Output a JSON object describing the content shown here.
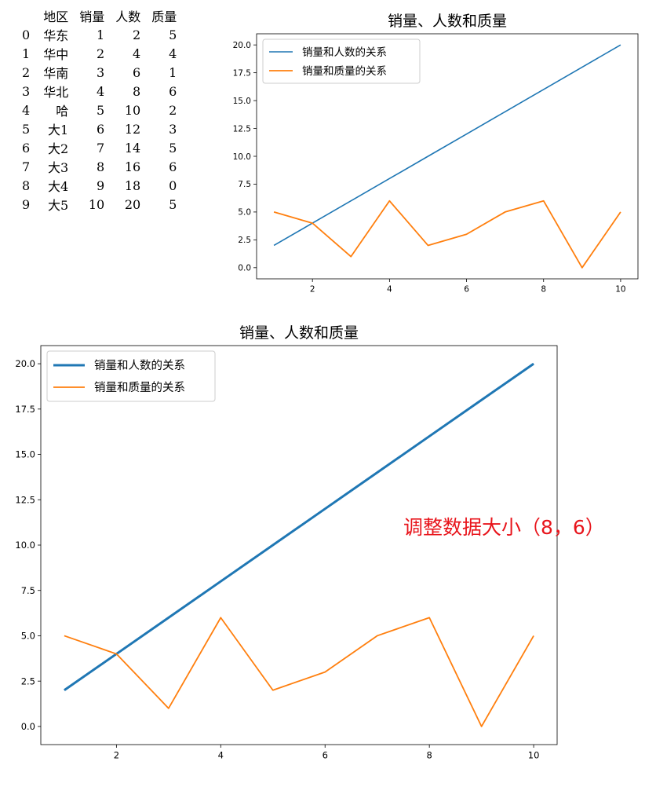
{
  "table": {
    "columns": [
      "地区",
      "销量",
      "人数",
      "质量"
    ],
    "rows": [
      {
        "index": "0",
        "cells": [
          "华东",
          "1",
          "2",
          "5"
        ]
      },
      {
        "index": "1",
        "cells": [
          "华中",
          "2",
          "4",
          "4"
        ]
      },
      {
        "index": "2",
        "cells": [
          "华南",
          "3",
          "6",
          "1"
        ]
      },
      {
        "index": "3",
        "cells": [
          "华北",
          "4",
          "8",
          "6"
        ]
      },
      {
        "index": "4",
        "cells": [
          "哈",
          "5",
          "10",
          "2"
        ]
      },
      {
        "index": "5",
        "cells": [
          "大1",
          "6",
          "12",
          "3"
        ]
      },
      {
        "index": "6",
        "cells": [
          "大2",
          "7",
          "14",
          "5"
        ]
      },
      {
        "index": "7",
        "cells": [
          "大3",
          "8",
          "16",
          "6"
        ]
      },
      {
        "index": "8",
        "cells": [
          "大4",
          "9",
          "18",
          "0"
        ]
      },
      {
        "index": "9",
        "cells": [
          "大5",
          "10",
          "20",
          "5"
        ]
      }
    ]
  },
  "annotation": "调整数据大小（8，6）",
  "colors": {
    "series1": "#1f77b4",
    "series2": "#ff7f0e",
    "annotation": "#e8141b"
  },
  "chart_data": [
    {
      "type": "line",
      "title": "销量、人数和质量",
      "xlabel": "",
      "ylabel": "",
      "xlim": [
        0.55,
        10.45
      ],
      "ylim": [
        -1.0,
        21.0
      ],
      "xticks": [
        "2",
        "4",
        "6",
        "8",
        "10"
      ],
      "yticks": [
        "0.0",
        "2.5",
        "5.0",
        "7.5",
        "10.0",
        "12.5",
        "15.0",
        "17.5",
        "20.0"
      ],
      "legend": "top-left",
      "x": [
        1,
        2,
        3,
        4,
        5,
        6,
        7,
        8,
        9,
        10
      ],
      "series": [
        {
          "name": "销量和人数的关系",
          "values": [
            2,
            4,
            6,
            8,
            10,
            12,
            14,
            16,
            18,
            20
          ]
        },
        {
          "name": "销量和质量的关系",
          "values": [
            5,
            4,
            1,
            6,
            2,
            3,
            5,
            6,
            0,
            5
          ]
        }
      ]
    },
    {
      "type": "line",
      "title": "销量、人数和质量",
      "xlabel": "",
      "ylabel": "",
      "xlim": [
        0.55,
        10.45
      ],
      "ylim": [
        -1.0,
        21.0
      ],
      "xticks": [
        "2",
        "4",
        "6",
        "8",
        "10"
      ],
      "yticks": [
        "0.0",
        "2.5",
        "5.0",
        "7.5",
        "10.0",
        "12.5",
        "15.0",
        "17.5",
        "20.0"
      ],
      "legend": "top-left",
      "x": [
        1,
        2,
        3,
        4,
        5,
        6,
        7,
        8,
        9,
        10
      ],
      "series": [
        {
          "name": "销量和人数的关系",
          "values": [
            2,
            4,
            6,
            8,
            10,
            12,
            14,
            16,
            18,
            20
          ]
        },
        {
          "name": "销量和质量的关系",
          "values": [
            5,
            4,
            1,
            6,
            2,
            3,
            5,
            6,
            0,
            5
          ]
        }
      ]
    }
  ]
}
